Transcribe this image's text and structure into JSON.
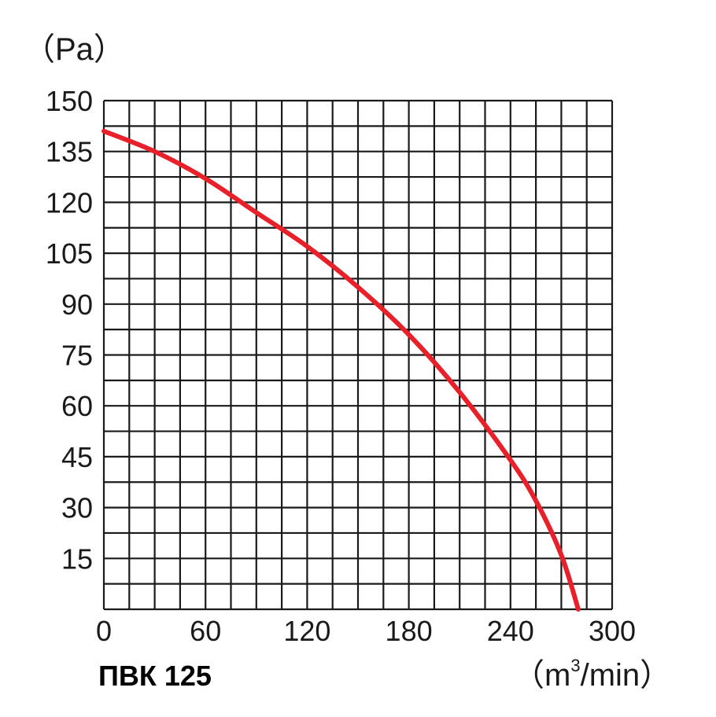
{
  "chart_data": {
    "type": "line",
    "title": "ПВК 125",
    "xlabel": "",
    "ylabel": "",
    "x_unit": {
      "open": "（",
      "base": "m",
      "sup": "3",
      "rest": "/min",
      "close": "）"
    },
    "y_unit": "（Pa）",
    "xlim": [
      0,
      300
    ],
    "ylim": [
      0,
      150
    ],
    "x_ticks": [
      "0",
      "60",
      "120",
      "180",
      "240",
      "300"
    ],
    "y_ticks": [
      "15",
      "30",
      "45",
      "60",
      "75",
      "90",
      "105",
      "120",
      "135",
      "150"
    ],
    "grid": true,
    "grid_minor_step": {
      "x": 15,
      "y": 7.5
    },
    "series": [
      {
        "color": "#e8202a",
        "x": [
          0,
          30,
          60,
          90,
          120,
          150,
          180,
          210,
          240,
          255,
          270,
          280
        ],
        "y": [
          141,
          135,
          127,
          117,
          107,
          95,
          81,
          64,
          44,
          32,
          16,
          0
        ]
      }
    ]
  }
}
